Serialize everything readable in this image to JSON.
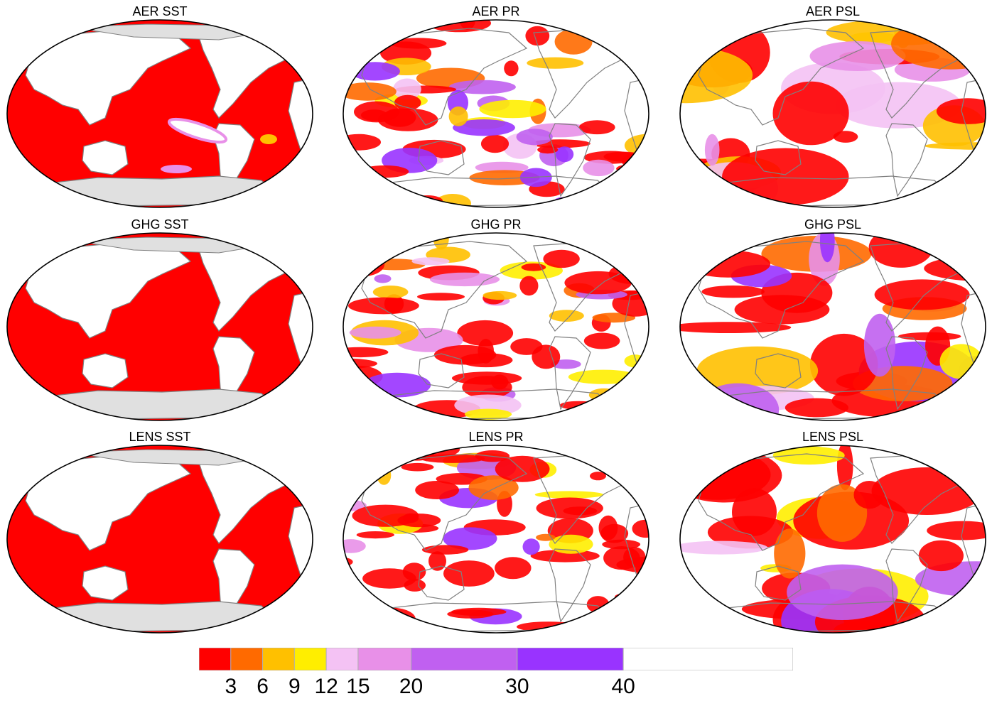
{
  "panels": [
    {
      "title": "AER SST",
      "variable": "SST",
      "experiment": "AER"
    },
    {
      "title": "AER PR",
      "variable": "PR",
      "experiment": "AER"
    },
    {
      "title": "AER PSL",
      "variable": "PSL",
      "experiment": "AER"
    },
    {
      "title": "GHG SST",
      "variable": "SST",
      "experiment": "GHG"
    },
    {
      "title": "GHG PR",
      "variable": "PR",
      "experiment": "GHG"
    },
    {
      "title": "GHG PSL",
      "variable": "PSL",
      "experiment": "GHG"
    },
    {
      "title": "LENS SST",
      "variable": "SST",
      "experiment": "LENS"
    },
    {
      "title": "LENS PR",
      "variable": "PR",
      "experiment": "LENS"
    },
    {
      "title": "LENS PSL",
      "variable": "PSL",
      "experiment": "LENS"
    }
  ],
  "colorbar": {
    "colors": [
      "#ff0000",
      "#ff6a00",
      "#ffc000",
      "#ffee00",
      "#f4c2f4",
      "#e890e8",
      "#c060f0",
      "#9933ff",
      "#ffffff"
    ],
    "boundaries": [
      3,
      6,
      9,
      12,
      15,
      20,
      30,
      40
    ],
    "tick_labels": [
      "3",
      "6",
      "9",
      "12",
      "15",
      "20",
      "30",
      "40"
    ]
  },
  "legend": {
    "land_color": "#e0e0e0",
    "coast_color": "#808080"
  }
}
